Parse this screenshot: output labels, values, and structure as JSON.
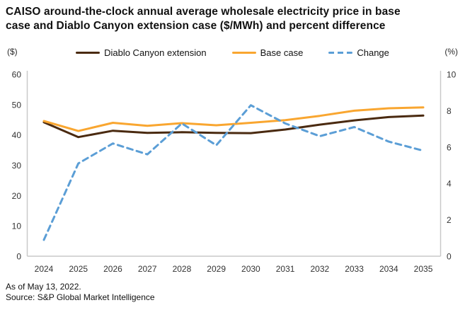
{
  "title_lines": [
    "CAISO around-the-clock annual average wholesale electricity price in base",
    "case and Diablo Canyon extension case ($/MWh) and percent difference"
  ],
  "axis_units": {
    "left": "($)",
    "right": "(%)"
  },
  "legend": [
    {
      "label": "Diablo Canyon extension",
      "color": "#4a2a10",
      "style": "solid"
    },
    {
      "label": "Base case",
      "color": "#f9a630",
      "style": "solid"
    },
    {
      "label": "Change",
      "color": "#5b9ed6",
      "style": "dashed"
    }
  ],
  "footer": {
    "as_of": "As of May 13, 2022.",
    "source": "Source: S&P Global Market Intelligence"
  },
  "colors": {
    "axis_line": "#c9c9c9",
    "tick_text": "#333333",
    "title_text": "#111111"
  },
  "chart_data": {
    "type": "line",
    "title": "CAISO around-the-clock annual average wholesale electricity price in base case and Diablo Canyon extension case ($/MWh) and percent difference",
    "x": [
      2024,
      2025,
      2026,
      2027,
      2028,
      2029,
      2030,
      2031,
      2032,
      2033,
      2034,
      2035
    ],
    "series": [
      {
        "name": "Diablo Canyon extension",
        "axis": "left",
        "color": "#4a2a10",
        "line_style": "solid",
        "values": [
          44.2,
          39.3,
          41.4,
          40.7,
          40.9,
          40.7,
          40.6,
          41.8,
          43.4,
          44.8,
          45.9,
          46.4
        ]
      },
      {
        "name": "Base case",
        "axis": "left",
        "color": "#f9a630",
        "line_style": "solid",
        "values": [
          44.6,
          41.3,
          44.0,
          43.0,
          43.9,
          43.2,
          44.0,
          44.9,
          46.3,
          48.0,
          48.8,
          49.1
        ]
      },
      {
        "name": "Change",
        "axis": "right",
        "color": "#5b9ed6",
        "line_style": "dashed",
        "values": [
          0.9,
          5.1,
          6.2,
          5.6,
          7.3,
          6.1,
          8.3,
          7.3,
          6.6,
          7.1,
          6.3,
          5.8
        ]
      }
    ],
    "left_axis": {
      "unit": "($)",
      "min": 0,
      "max": 60,
      "ticks": [
        0,
        10,
        20,
        30,
        40,
        50,
        60
      ]
    },
    "right_axis": {
      "unit": "(%)",
      "min": 0,
      "max": 10,
      "ticks": [
        0,
        2,
        4,
        6,
        8,
        10
      ]
    },
    "grid": false,
    "legend_position": "top"
  }
}
